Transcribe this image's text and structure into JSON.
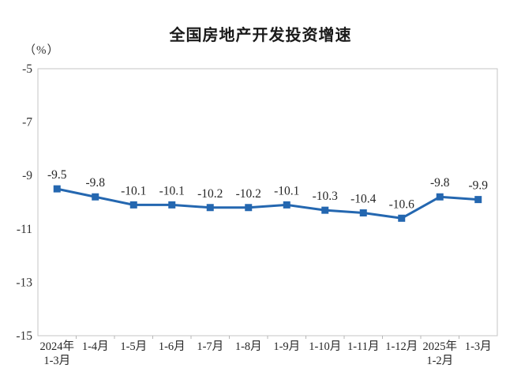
{
  "title": "全国房地产开发投资增速",
  "y_unit_label": "（%）",
  "chart_data": {
    "type": "line",
    "title": "全国房地产开发投资增速",
    "categories": [
      "2024年\n1-3月",
      "1-4月",
      "1-5月",
      "1-6月",
      "1-7月",
      "1-8月",
      "1-9月",
      "1-10月",
      "1-11月",
      "1-12月",
      "2025年\n1-2月",
      "1-3月"
    ],
    "series": [
      {
        "name": "全国房地产开发投资增速",
        "values": [
          -9.5,
          -9.8,
          -10.1,
          -10.1,
          -10.2,
          -10.2,
          -10.1,
          -10.3,
          -10.4,
          -10.6,
          -9.8,
          -9.9
        ]
      }
    ],
    "data_labels": [
      "-9.5",
      "-9.8",
      "-10.1",
      "-10.1",
      "-10.2",
      "-10.2",
      "-10.1",
      "-10.3",
      "-10.4",
      "-10.6",
      "-9.8",
      "-9.9"
    ],
    "xlabel": "",
    "ylabel": "（%）",
    "ylim": [
      -15,
      -5
    ],
    "yticks": [
      "-5",
      "-7",
      "-9",
      "-11",
      "-13",
      "-15"
    ],
    "grid": false,
    "legend_position": "none",
    "line_color": "#2467B0",
    "marker_shape": "square",
    "text_color": "#262626",
    "axis_border_color": "#c6c6c6"
  }
}
